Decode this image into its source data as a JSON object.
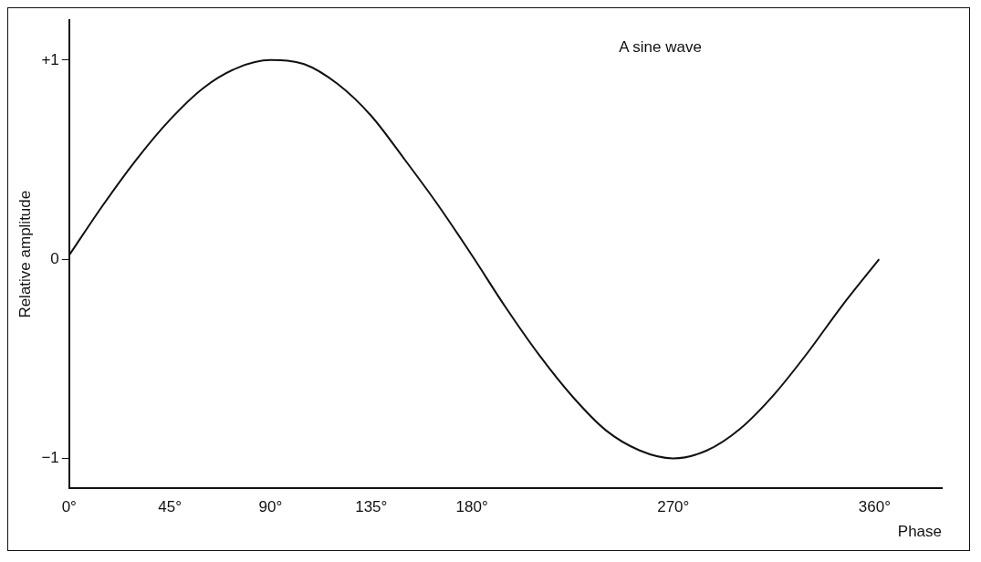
{
  "chart_data": {
    "type": "line",
    "xlabel": "Phase",
    "ylabel": "Relative amplitude",
    "annotations": [
      "A sine wave"
    ],
    "series": [
      {
        "color": "#111111",
        "x": [
          0,
          15,
          30,
          45,
          60,
          75,
          90,
          105,
          120,
          135,
          150,
          165,
          180,
          195,
          210,
          225,
          240,
          255,
          270,
          285,
          300,
          315,
          330,
          345,
          362
        ],
        "values": [
          0.02,
          0.27,
          0.5,
          0.7,
          0.86,
          0.96,
          1.0,
          0.98,
          0.88,
          0.72,
          0.5,
          0.27,
          0.02,
          -0.24,
          -0.48,
          -0.69,
          -0.86,
          -0.96,
          -1.0,
          -0.96,
          -0.85,
          -0.68,
          -0.47,
          -0.24,
          0
        ]
      }
    ],
    "xlim": [
      0,
      390
    ],
    "xticks": [
      {
        "value": 0,
        "label": "0°"
      },
      {
        "value": 45,
        "label": "45°"
      },
      {
        "value": 90,
        "label": "90°"
      },
      {
        "value": 135,
        "label": "135°"
      },
      {
        "value": 180,
        "label": "180°"
      },
      {
        "value": 270,
        "label": "270°"
      },
      {
        "value": 360,
        "label": "360°"
      }
    ],
    "ylim": [
      -1.15,
      1.2
    ],
    "yticks": [
      {
        "value": -1,
        "label": "−1"
      },
      0,
      {
        "value": 1,
        "label": "+1"
      }
    ],
    "grid": false,
    "legend": false,
    "marker": "none",
    "line_style": "solid"
  }
}
